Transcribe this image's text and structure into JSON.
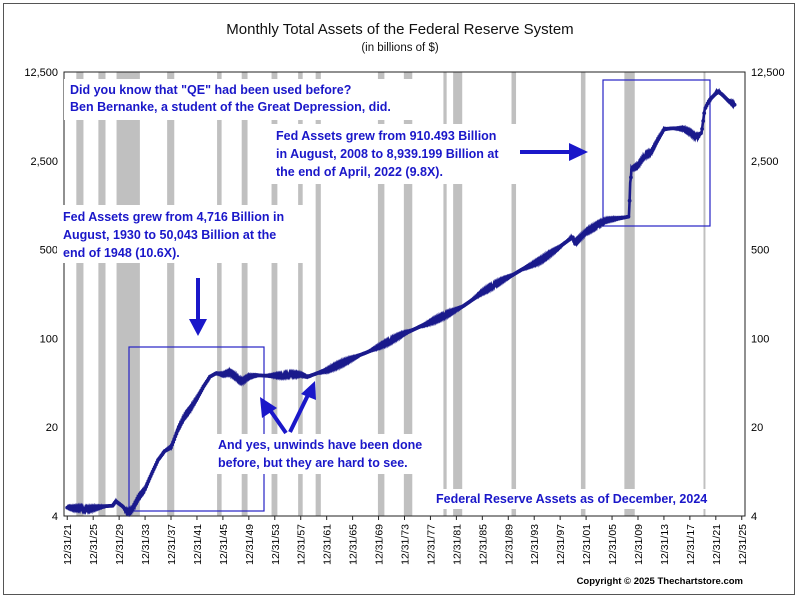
{
  "chart_data": {
    "type": "line",
    "title": "Monthly Total Assets of the Federal Reserve System",
    "subtitle": "(in billions of $)",
    "y_scale": "log",
    "ylim": [
      4,
      12500
    ],
    "y_ticks": [
      {
        "value": 4,
        "label": "4"
      },
      {
        "value": 20,
        "label": "20"
      },
      {
        "value": 100,
        "label": "100"
      },
      {
        "value": 500,
        "label": "500"
      },
      {
        "value": 2500,
        "label": "2,500"
      },
      {
        "value": 12500,
        "label": "12,500"
      }
    ],
    "x_ticks": [
      "12/31/21",
      "12/31/25",
      "12/31/29",
      "12/31/33",
      "12/31/37",
      "12/31/41",
      "12/31/45",
      "12/31/49",
      "12/31/53",
      "12/31/57",
      "12/31/61",
      "12/31/65",
      "12/31/69",
      "12/31/73",
      "12/31/77",
      "12/31/81",
      "12/31/85",
      "12/31/89",
      "12/31/93",
      "12/31/97",
      "12/31/01",
      "12/31/05",
      "12/31/09",
      "12/31/13",
      "12/31/17",
      "12/31/21",
      "12/31/25"
    ],
    "xlim": [
      1921.5,
      2026.5
    ],
    "recessions": [
      [
        1923.4,
        1924.5
      ],
      [
        1926.8,
        1927.9
      ],
      [
        1929.6,
        1933.2
      ],
      [
        1937.4,
        1938.5
      ],
      [
        1945.1,
        1945.8
      ],
      [
        1948.9,
        1949.8
      ],
      [
        1953.5,
        1954.4
      ],
      [
        1957.6,
        1958.3
      ],
      [
        1960.3,
        1961.1
      ],
      [
        1969.9,
        1970.9
      ],
      [
        1973.9,
        1975.2
      ],
      [
        1980.0,
        1980.5
      ],
      [
        1981.5,
        1982.9
      ],
      [
        1990.5,
        1991.2
      ],
      [
        2001.2,
        2001.9
      ],
      [
        2007.9,
        2009.5
      ],
      [
        2020.1,
        2020.4
      ]
    ],
    "series": [
      {
        "marker_color": "#1a1a8c",
        "points": [
          [
            1922.0,
            4.7
          ],
          [
            1923.0,
            4.6
          ],
          [
            1924.0,
            4.6
          ],
          [
            1925.0,
            4.5
          ],
          [
            1926.0,
            4.6
          ],
          [
            1927.0,
            4.7
          ],
          [
            1928.0,
            4.8
          ],
          [
            1929.0,
            4.8
          ],
          [
            1929.5,
            5.2
          ],
          [
            1930.6,
            4.716
          ],
          [
            1931.0,
            4.4
          ],
          [
            1931.5,
            4.3
          ],
          [
            1932.0,
            4.5
          ],
          [
            1932.5,
            5.0
          ],
          [
            1933.0,
            5.6
          ],
          [
            1934.0,
            6.5
          ],
          [
            1935.0,
            8.5
          ],
          [
            1936.0,
            11
          ],
          [
            1937.0,
            13
          ],
          [
            1938.0,
            14
          ],
          [
            1939.0,
            19
          ],
          [
            1940.0,
            24
          ],
          [
            1941.0,
            28
          ],
          [
            1942.0,
            34
          ],
          [
            1943.0,
            42
          ],
          [
            1944.0,
            50
          ],
          [
            1945.0,
            53
          ],
          [
            1946.0,
            52
          ],
          [
            1947.0,
            54
          ],
          [
            1948.0,
            50.043
          ],
          [
            1948.5,
            47
          ],
          [
            1949.0,
            46
          ],
          [
            1950.0,
            50
          ],
          [
            1951.0,
            51
          ],
          [
            1952.0,
            51
          ],
          [
            1953.0,
            51
          ],
          [
            1954.0,
            51
          ],
          [
            1955.0,
            51
          ],
          [
            1956.0,
            52
          ],
          [
            1957.0,
            52
          ],
          [
            1958.0,
            52
          ],
          [
            1959.0,
            50
          ],
          [
            1960.0,
            52
          ],
          [
            1962.0,
            56
          ],
          [
            1965.0,
            66
          ],
          [
            1968.0,
            77
          ],
          [
            1971.0,
            91
          ],
          [
            1974.0,
            110
          ],
          [
            1977.0,
            127
          ],
          [
            1980.0,
            150
          ],
          [
            1983.0,
            178
          ],
          [
            1986.0,
            232
          ],
          [
            1989.0,
            285
          ],
          [
            1992.0,
            345
          ],
          [
            1995.0,
            412
          ],
          [
            1998.0,
            525
          ],
          [
            1999.9,
            635
          ],
          [
            2000.3,
            565
          ],
          [
            2002.0,
            690
          ],
          [
            2005.0,
            850
          ],
          [
            2008.6,
            910.493
          ],
          [
            2008.8,
            1650
          ],
          [
            2009.0,
            2150
          ],
          [
            2010.0,
            2300
          ],
          [
            2011.0,
            2750
          ],
          [
            2012.0,
            2900
          ],
          [
            2013.0,
            3650
          ],
          [
            2014.0,
            4450
          ],
          [
            2015.0,
            4500
          ],
          [
            2016.0,
            4480
          ],
          [
            2017.0,
            4470
          ],
          [
            2018.0,
            4200
          ],
          [
            2019.0,
            3800
          ],
          [
            2019.8,
            4150
          ],
          [
            2020.3,
            6400
          ],
          [
            2021.0,
            7400
          ],
          [
            2022.3,
            8939.199
          ],
          [
            2023.0,
            8300
          ],
          [
            2024.0,
            7400
          ],
          [
            2024.9,
            6900
          ]
        ]
      }
    ],
    "annotations": {
      "qe_line1": "Did you know that \"QE\" had been used before?",
      "qe_line2": "Ben Bernanke, a student of the Great Depression, did.",
      "fed_2008_line1": "Fed Assets grew from 910.493 Billion",
      "fed_2008_line2": "in August, 2008 to 8,939.199 Billion at",
      "fed_2008_line3": "the end of April, 2022 (9.8X).",
      "fed_1930_line1": "Fed Assets grew from 4,716 Billion in",
      "fed_1930_line2": "August, 1930 to 50,043 Billion at the",
      "fed_1930_line3": "end of 1948 (10.6X).",
      "unwind_line1": "And yes, unwinds have been done",
      "unwind_line2": "before, but they are hard to see.",
      "asof": "Federal Reserve Assets as of December, 2024"
    },
    "colors": {
      "annotation": "#1a17c9",
      "box": "#2622c4",
      "series": "#1a1a8c",
      "recession": "#c0c0c0"
    },
    "copyright": "Copyright © 2025 Thechartstore.com"
  }
}
